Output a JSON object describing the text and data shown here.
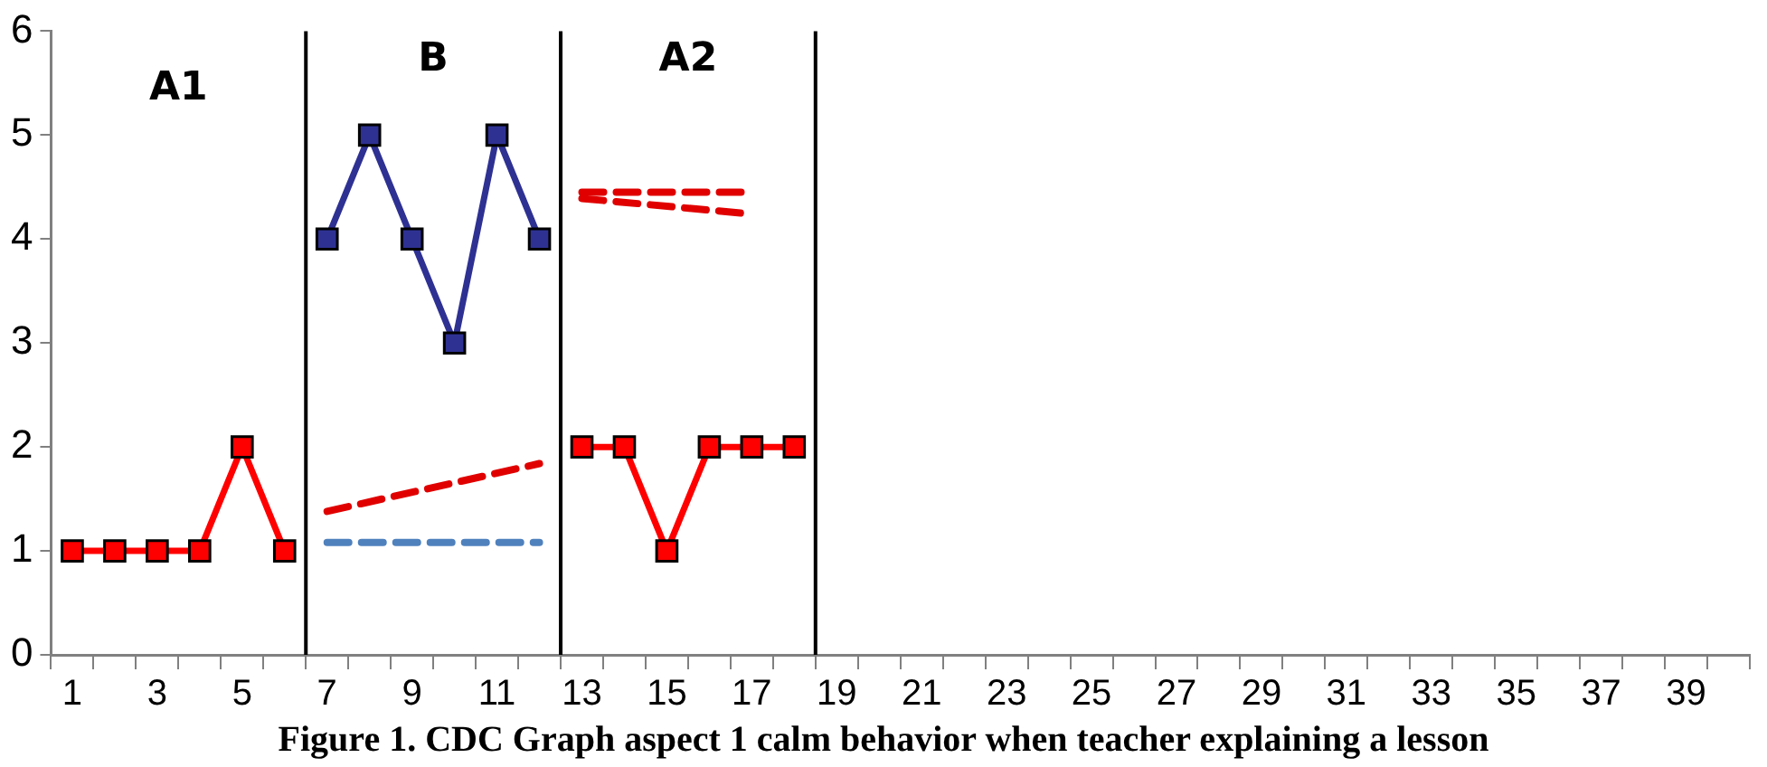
{
  "chart_data": {
    "type": "line",
    "title": "Figure 1. CDC Graph aspect 1 calm behavior when teacher explaining a lesson",
    "xlim": [
      0.5,
      40.5
    ],
    "xticks": [
      {
        "value": 0.5,
        "label": null
      },
      1,
      {
        "value": 1.5,
        "label": null
      },
      {
        "value": 2.5,
        "label": null
      },
      3,
      {
        "value": 3.5,
        "label": null
      },
      {
        "value": 4.5,
        "label": null
      },
      5,
      {
        "value": 5.5,
        "label": null
      },
      {
        "value": 6.5,
        "label": null
      },
      7,
      {
        "value": 7.5,
        "label": null
      },
      {
        "value": 8.5,
        "label": null
      },
      9,
      {
        "value": 9.5,
        "label": null
      },
      {
        "value": 10.5,
        "label": null
      },
      11,
      {
        "value": 11.5,
        "label": null
      },
      {
        "value": 12.5,
        "label": null
      },
      13,
      {
        "value": 13.5,
        "label": null
      },
      {
        "value": 14.5,
        "label": null
      },
      15,
      {
        "value": 15.5,
        "label": null
      },
      {
        "value": 16.5,
        "label": null
      },
      17,
      {
        "value": 17.5,
        "label": null
      },
      {
        "value": 18.5,
        "label": null
      },
      19,
      {
        "value": 19.5,
        "label": null
      },
      {
        "value": 20.5,
        "label": null
      },
      21,
      {
        "value": 21.5,
        "label": null
      },
      {
        "value": 22.5,
        "label": null
      },
      23,
      {
        "value": 23.5,
        "label": null
      },
      {
        "value": 24.5,
        "label": null
      },
      25,
      {
        "value": 25.5,
        "label": null
      },
      {
        "value": 26.5,
        "label": null
      },
      27,
      {
        "value": 27.5,
        "label": null
      },
      {
        "value": 28.5,
        "label": null
      },
      29,
      {
        "value": 29.5,
        "label": null
      },
      {
        "value": 30.5,
        "label": null
      },
      31,
      {
        "value": 31.5,
        "label": null
      },
      {
        "value": 32.5,
        "label": null
      },
      33,
      {
        "value": 33.5,
        "label": null
      },
      {
        "value": 34.5,
        "label": null
      },
      35,
      {
        "value": 35.5,
        "label": null
      },
      {
        "value": 36.5,
        "label": null
      },
      37,
      {
        "value": 37.5,
        "label": null
      },
      {
        "value": 38.5,
        "label": null
      },
      39,
      {
        "value": 39.5,
        "label": null
      },
      {
        "value": 40.5,
        "label": null
      }
    ],
    "ylim": [
      0,
      6
    ],
    "yticks": [
      0,
      1,
      2,
      3,
      4,
      5,
      6
    ],
    "grid": false,
    "legend": false,
    "series": [
      {
        "color": "#ff0000",
        "marker": "square",
        "x": [
          1,
          2,
          3,
          4,
          5,
          6
        ],
        "values": [
          1,
          1,
          1,
          1,
          2,
          1
        ]
      },
      {
        "color": "#2e3192",
        "marker": "square",
        "x": [
          7,
          8,
          9,
          10,
          11,
          12
        ],
        "values": [
          4,
          5,
          4,
          3,
          5,
          4
        ]
      },
      {
        "color": "#ff0000",
        "marker": "square",
        "x": [
          13,
          14,
          15,
          16,
          17,
          18
        ],
        "values": [
          2,
          2,
          1,
          2,
          2,
          2
        ]
      },
      {
        "color": "#e00000",
        "marker": "none",
        "line_style": "dashed",
        "x": [
          7,
          12
        ],
        "values": [
          1.38,
          1.84
        ]
      },
      {
        "color": "#4f81bd",
        "marker": "none",
        "line_style": "dashed",
        "x": [
          7,
          12
        ],
        "values": [
          1.08,
          1.08
        ]
      },
      {
        "color": "#e00000",
        "marker": "none",
        "line_style": "dashed",
        "x": [
          13,
          17
        ],
        "values": [
          4.45,
          4.45
        ]
      },
      {
        "color": "#e00000",
        "marker": "none",
        "line_style": "dashed",
        "x": [
          13,
          17
        ],
        "values": [
          4.39,
          4.24
        ]
      }
    ],
    "ref_lines": [
      {
        "axis": "x",
        "value": 6.5,
        "color": "#000000"
      },
      {
        "axis": "x",
        "value": 12.5,
        "color": "#000000"
      },
      {
        "axis": "x",
        "value": 18.5,
        "color": "#000000"
      }
    ],
    "annotations": [
      "A1",
      "B",
      "A2"
    ]
  }
}
